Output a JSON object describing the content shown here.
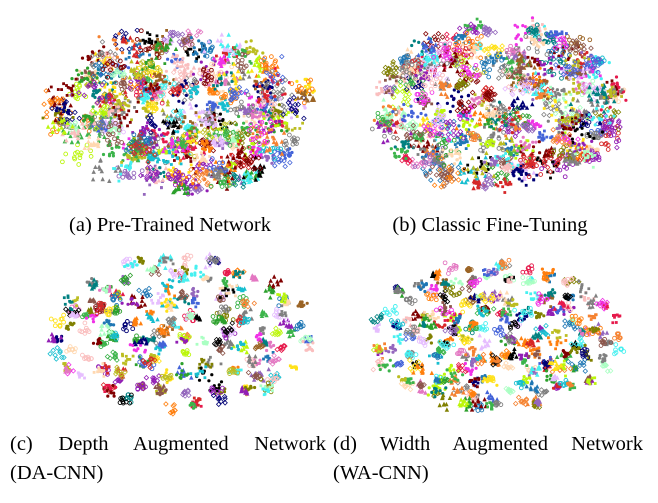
{
  "figure": {
    "panels": [
      {
        "id": "a",
        "caption": "(a) Pre-Trained Network",
        "plot_type": "scatter",
        "embedding": "t-SNE",
        "layout_style": "dense-blob"
      },
      {
        "id": "b",
        "caption": "(b) Classic Fine-Tuning",
        "plot_type": "scatter",
        "embedding": "t-SNE",
        "layout_style": "dense-blob"
      },
      {
        "id": "c",
        "caption_line1": "(c) Depth Augmented Network",
        "caption_line2": "(DA-CNN)",
        "plot_type": "scatter",
        "embedding": "t-SNE",
        "layout_style": "separated-clusters"
      },
      {
        "id": "d",
        "caption_line1": "(d) Width Augmented Network",
        "caption_line2": "(WA-CNN)",
        "plot_type": "scatter",
        "embedding": "t-SNE",
        "layout_style": "separated-clusters"
      }
    ],
    "palette": [
      "#e6194b",
      "#3cb44b",
      "#ffe119",
      "#4363d8",
      "#f58231",
      "#911eb4",
      "#46f0f0",
      "#f032e6",
      "#bcf60c",
      "#fabebe",
      "#008080",
      "#e6beff",
      "#9a6324",
      "#800000",
      "#aaffc3",
      "#808000",
      "#ffd8b1",
      "#000075",
      "#808080",
      "#000000",
      "#1f77b4",
      "#2ca02c",
      "#d62728",
      "#9467bd",
      "#ff7f0e",
      "#17becf",
      "#7f7f7f",
      "#bcbd22",
      "#8c564b",
      "#e377c2"
    ]
  }
}
